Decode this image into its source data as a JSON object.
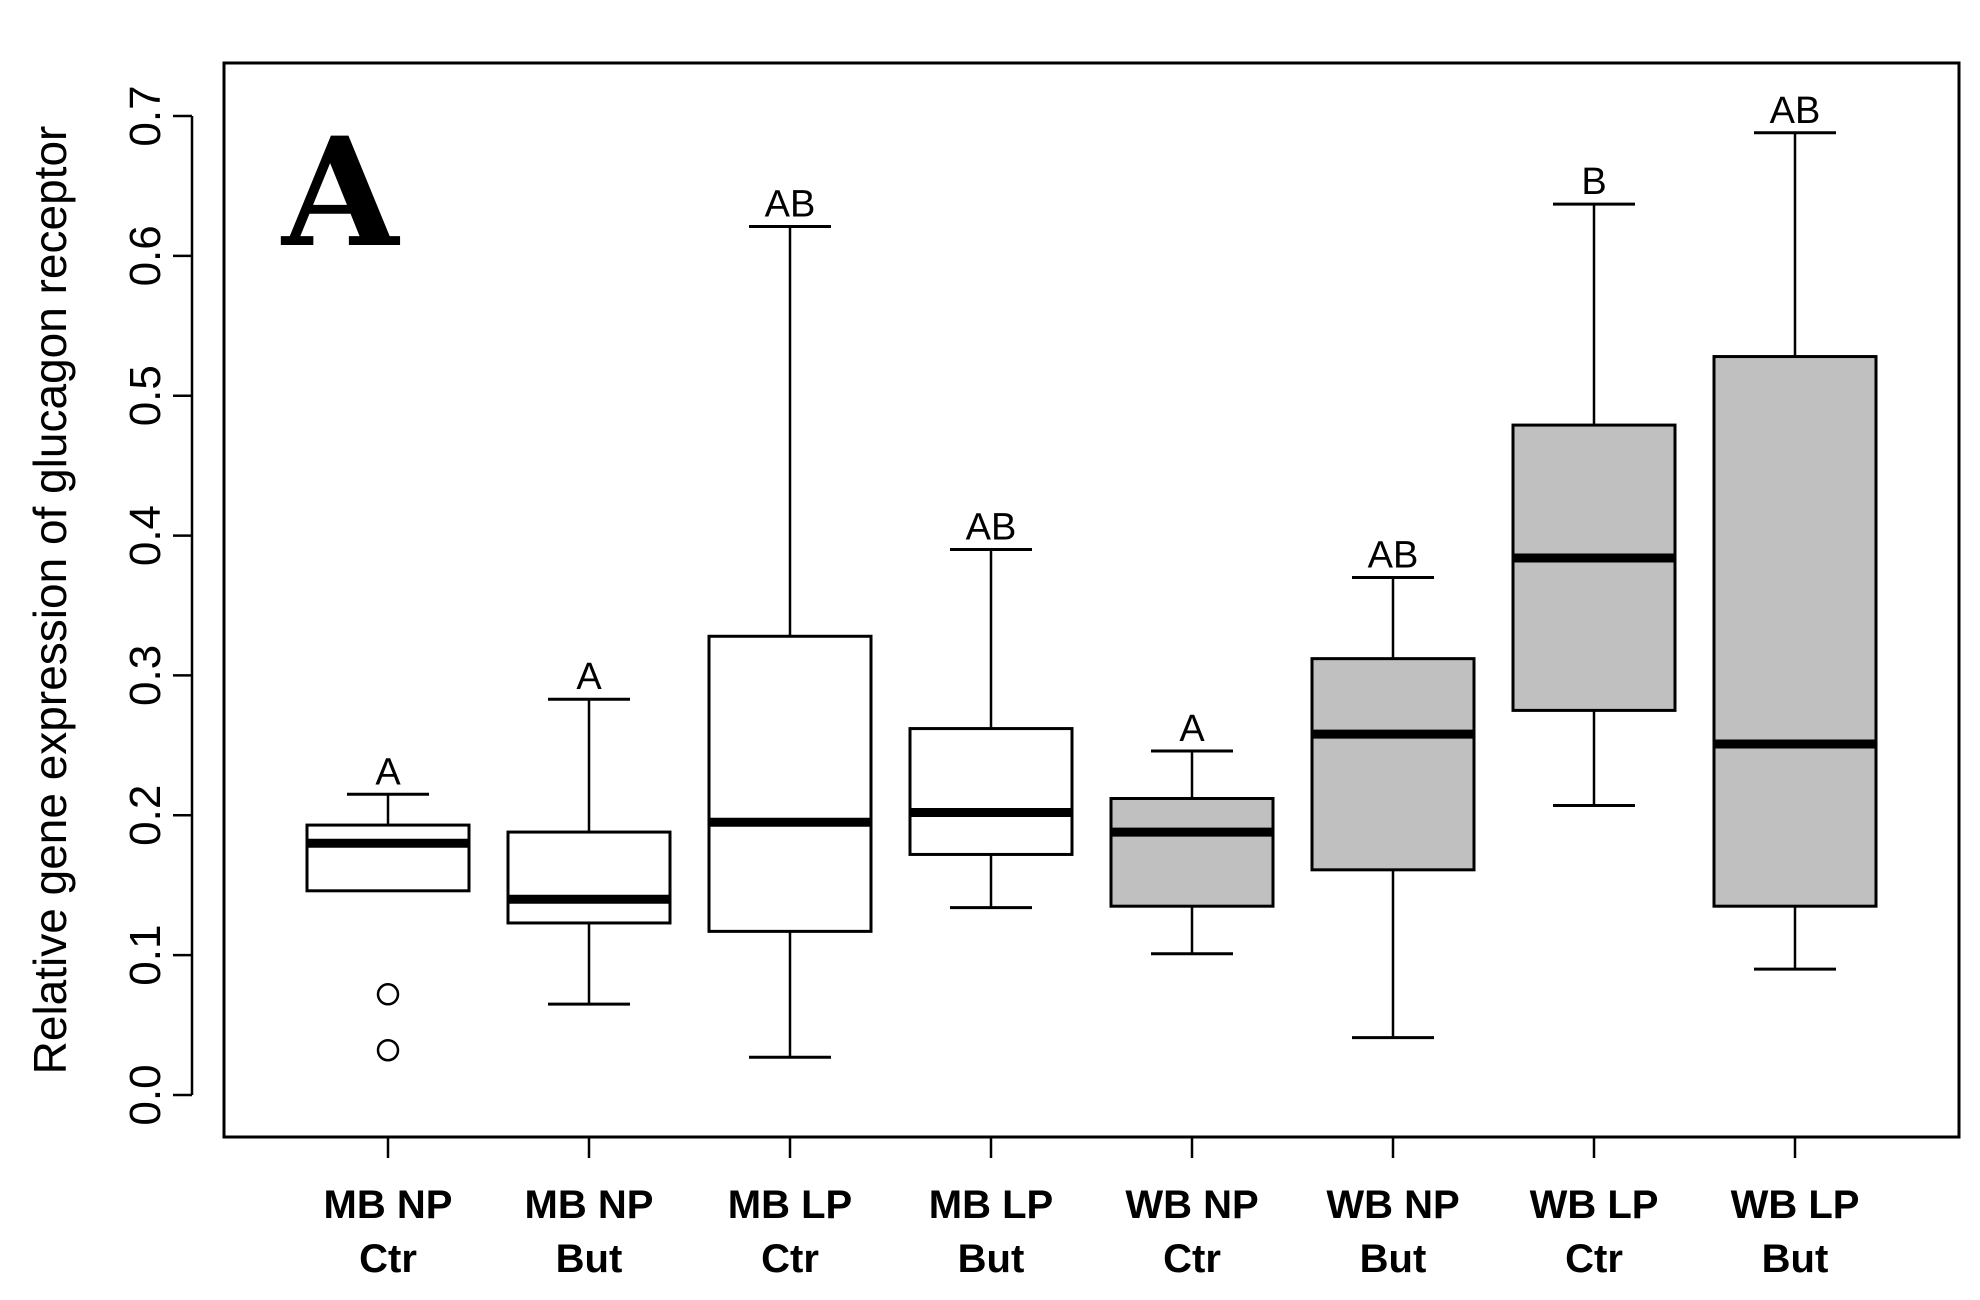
{
  "chart_data": {
    "type": "boxplot",
    "panel_label": "A",
    "ylabel": "Relative gene expression of glucagon receptor",
    "ylim": [
      0.0,
      0.7
    ],
    "yticks": [
      "0.0",
      "0.1",
      "0.2",
      "0.3",
      "0.4",
      "0.5",
      "0.6",
      "0.7"
    ],
    "fill_colors": {
      "white": "#ffffff",
      "gray": "#c0c0c0"
    },
    "groups": [
      {
        "line1": "MB NP",
        "line2": "Ctr",
        "fill": "white",
        "whisker_low": 0.146,
        "q1": 0.146,
        "median": 0.18,
        "q3": 0.193,
        "whisker_high": 0.215,
        "outliers": [
          0.072,
          0.032
        ],
        "sig": "A"
      },
      {
        "line1": "MB NP",
        "line2": "But",
        "fill": "white",
        "whisker_low": 0.065,
        "q1": 0.123,
        "median": 0.14,
        "q3": 0.188,
        "whisker_high": 0.283,
        "outliers": [],
        "sig": "A"
      },
      {
        "line1": "MB LP",
        "line2": "Ctr",
        "fill": "white",
        "whisker_low": 0.027,
        "q1": 0.117,
        "median": 0.195,
        "q3": 0.328,
        "whisker_high": 0.621,
        "outliers": [],
        "sig": "AB"
      },
      {
        "line1": "MB LP",
        "line2": "But",
        "fill": "white",
        "whisker_low": 0.134,
        "q1": 0.172,
        "median": 0.202,
        "q3": 0.262,
        "whisker_high": 0.39,
        "outliers": [],
        "sig": "AB"
      },
      {
        "line1": "WB NP",
        "line2": "Ctr",
        "fill": "gray",
        "whisker_low": 0.101,
        "q1": 0.135,
        "median": 0.188,
        "q3": 0.212,
        "whisker_high": 0.246,
        "outliers": [],
        "sig": "A"
      },
      {
        "line1": "WB NP",
        "line2": "But",
        "fill": "gray",
        "whisker_low": 0.041,
        "q1": 0.161,
        "median": 0.258,
        "q3": 0.312,
        "whisker_high": 0.37,
        "outliers": [],
        "sig": "AB"
      },
      {
        "line1": "WB LP",
        "line2": "Ctr",
        "fill": "gray",
        "whisker_low": 0.207,
        "q1": 0.275,
        "median": 0.384,
        "q3": 0.479,
        "whisker_high": 0.637,
        "outliers": [],
        "sig": "B"
      },
      {
        "line1": "WB LP",
        "line2": "But",
        "fill": "gray",
        "whisker_low": 0.09,
        "q1": 0.135,
        "median": 0.251,
        "q3": 0.528,
        "whisker_high": 0.688,
        "outliers": [],
        "sig": "AB"
      }
    ]
  }
}
